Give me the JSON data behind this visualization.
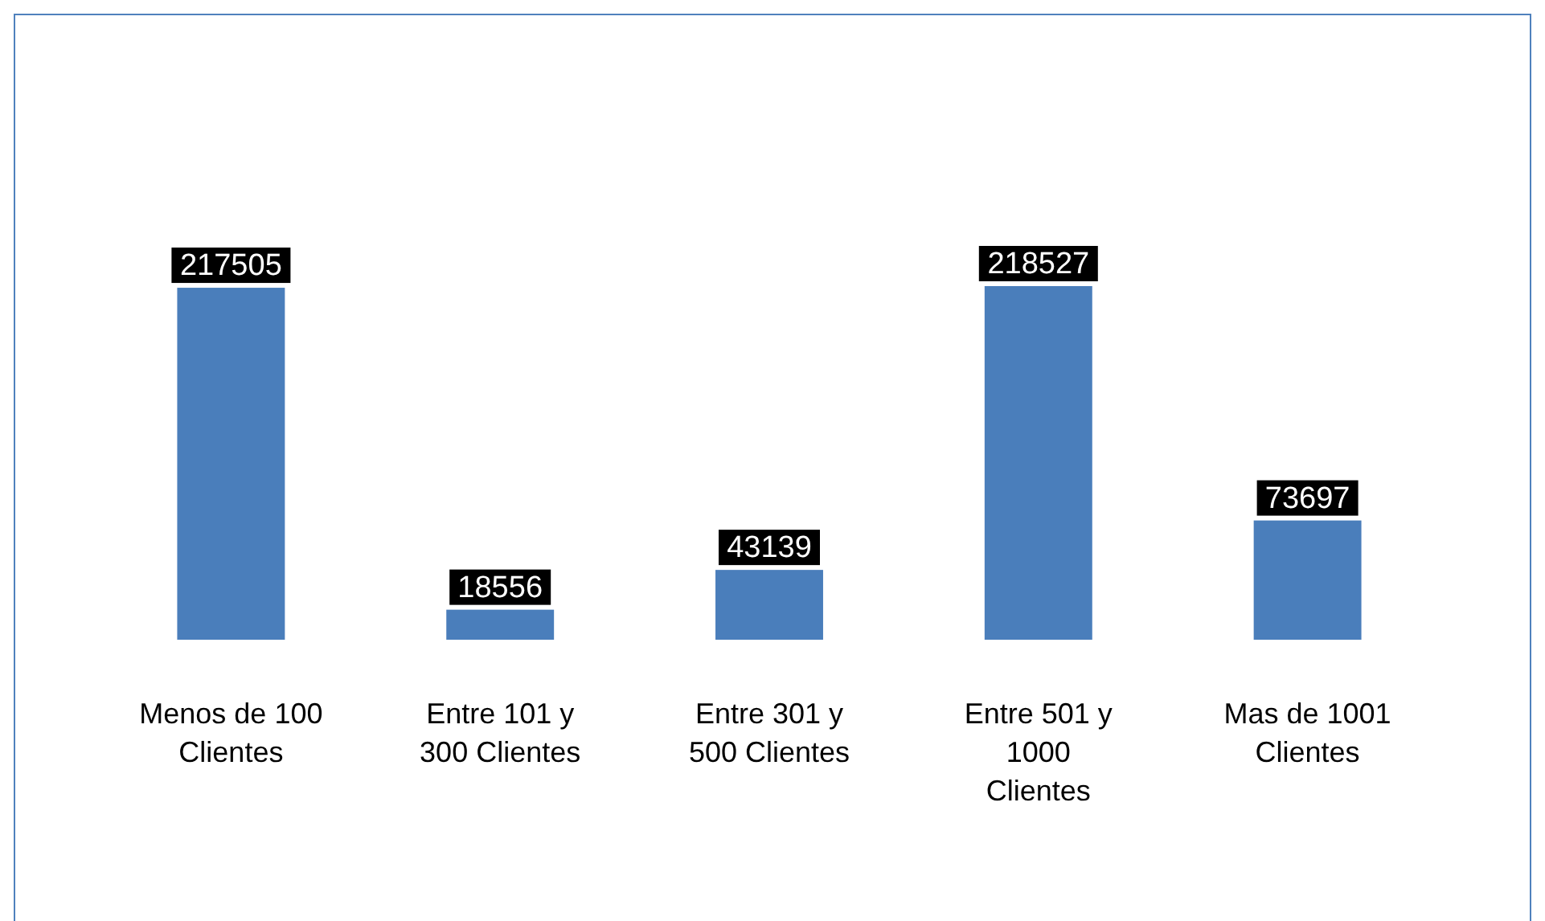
{
  "chart_data": {
    "type": "bar",
    "categories": [
      "Menos de 100 Clientes",
      "Entre 101 y 300 Clientes",
      "Entre 301 y 500 Clientes",
      "Entre 501 y 1000 Clientes",
      "Mas de 1001 Clientes"
    ],
    "values": [
      217505,
      18556,
      43139,
      218527,
      73697
    ],
    "color": "#4a7ebb",
    "data_labels": true
  }
}
